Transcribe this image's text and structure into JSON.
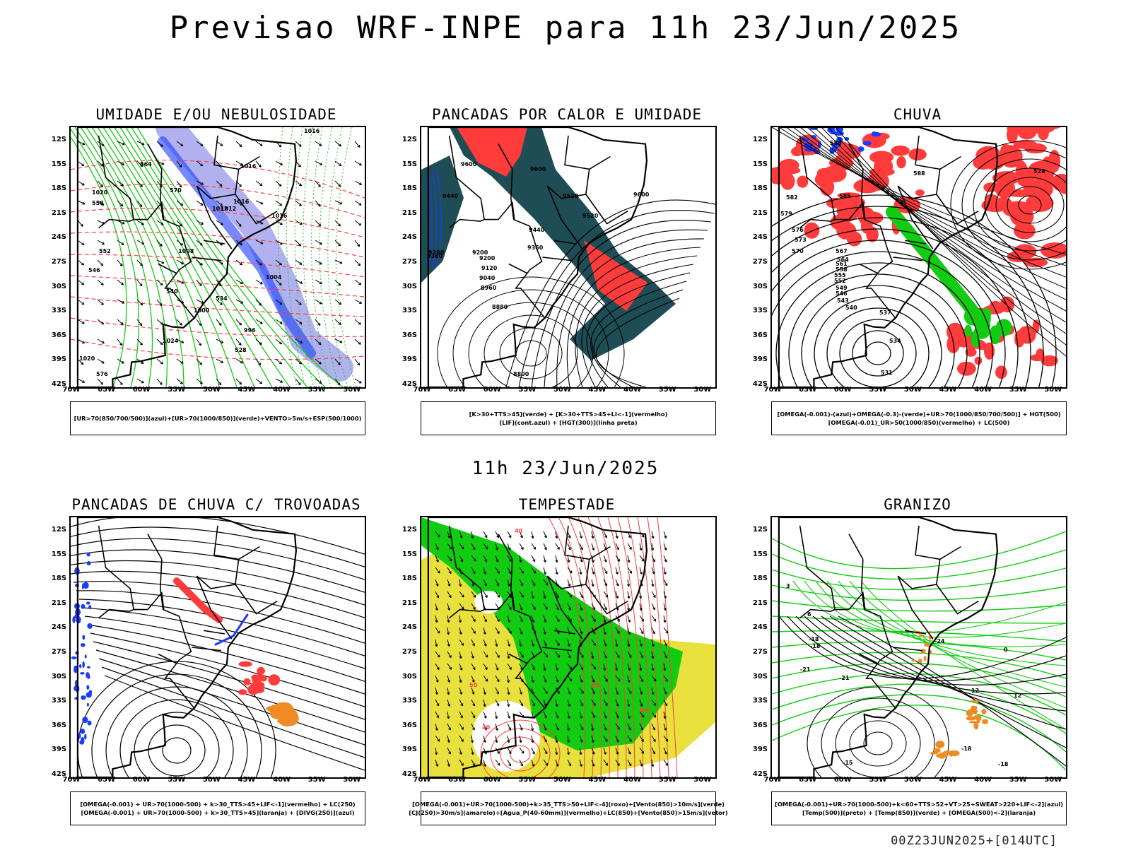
{
  "page": {
    "title": "Previsao WRF-INPE  para 11h 23/Jun/2025",
    "mid_title": "11h 23/Jun/2025",
    "footer": "00Z23JUN2025+[014UTC]"
  },
  "axes": {
    "lat_labels": [
      "12S",
      "15S",
      "18S",
      "21S",
      "24S",
      "27S",
      "30S",
      "33S",
      "36S",
      "39S",
      "42S"
    ],
    "lon_labels": [
      "70W",
      "65W",
      "60W",
      "55W",
      "50W",
      "45W",
      "40W",
      "35W",
      "30W"
    ]
  },
  "colors": {
    "red": "#ff3b3b",
    "green": "#11cc11",
    "blue": "#1a3cff",
    "lavender": "#aaa8ee",
    "teal": "#1e4d55",
    "yellow": "#e8e03c",
    "orange": "#f08a24",
    "black": "#000000"
  },
  "panels": [
    {
      "title": "UMIDADE E/OU NEBULOSIDADE",
      "legend": [
        "[UR>70(850/700/500)](azul)+[UR>70(1000/850)](verde)+VENTO>5m/s+ESP(500/1000)"
      ],
      "contour_labels": [
        "1016",
        "1016",
        "1020",
        "1012",
        "1012",
        "1016",
        "1016",
        "1008",
        "1004",
        "1000",
        "996",
        "1024",
        "1020",
        "576",
        "570",
        "564",
        "558",
        "552",
        "546",
        "540",
        "534",
        "528"
      ]
    },
    {
      "title": "PANCADAS POR CALOR E UMIDADE",
      "legend": [
        "[K>30+TTS>45](verde) + [K>30+TTS>45+LI<-1](vermelho)",
        "[LIF](cont.azul) + [HGT(300)](linha preta)"
      ],
      "contour_labels": [
        "9600",
        "9600",
        "9520",
        "9520",
        "9440",
        "9440",
        "9360",
        "9360",
        "9280",
        "9200",
        "9120",
        "9040",
        "8960",
        "8880",
        "8800",
        "9200",
        "9600"
      ]
    },
    {
      "title": "CHUVA",
      "legend": [
        "[OMEGA(-0.001)-(azul)+OMEGA(-0.3)-(verde)+UR>70(1000/850/700/500)] + HGT(500)",
        "[OMEGA(-0.01)_UR>50(1000/850)(vermelho) + LC(500)"
      ],
      "contour_labels": [
        "588",
        "588",
        "585",
        "582",
        "579",
        "576",
        "573",
        "570",
        "567",
        "564",
        "561",
        "558",
        "555",
        "552",
        "549",
        "546",
        "543",
        "540",
        "537",
        "534",
        "531",
        "528"
      ]
    },
    {
      "title": "PANCADAS DE CHUVA C/ TROVOADAS",
      "legend": [
        "[OMEGA(-0.001) + UR>70(1000-500) + k>30_TTS>45+LIF<-1](vermelho) + LC(250)",
        "[OMEGA(-0.001) + UR>70(1000-500) + k>30_TTS>45](laranja) + [DIVG(250)](azul)"
      ],
      "contour_labels": []
    },
    {
      "title": "TEMPESTADE",
      "legend": [
        "[OMEGA(-0.001)+UR>70(1000-500)+k>35_TTS>50+LIF<-4](roxo)+[Vento(850)>10m/s](verde)",
        "[CJ(250)>30m/s](amarelo)+[Agua_P(40-60mm)](vermelho)+LC(850)+[Vento(850)>15m/s](vetor)"
      ],
      "contour_labels": [
        "40",
        "50",
        "40",
        "50",
        "60"
      ]
    },
    {
      "title": "GRANIZO",
      "legend": [
        "[OMEGA(-0.001)+UR>70(1000-500)+k<60+TTS>52+VT>25+SWEAT>220+LIF<-2](azul)",
        "[Temp(500)](preto) + [Temp(850)](verde) + [OMEGA(500)<-2](laranja)"
      ],
      "contour_labels": [
        "-18",
        "-18",
        "-21",
        "-21",
        "-24",
        "12",
        "12",
        "-15",
        "-18",
        "-18",
        "0",
        "3",
        "6"
      ]
    }
  ]
}
